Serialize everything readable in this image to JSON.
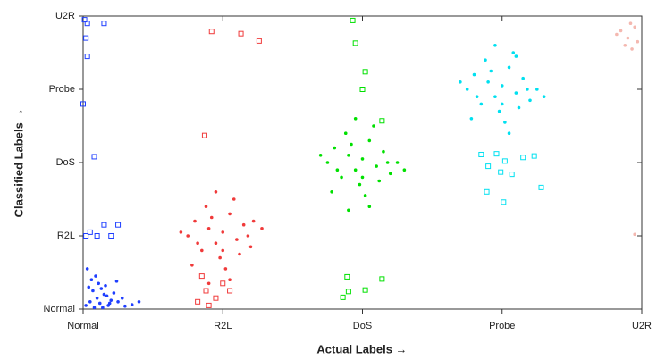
{
  "chart_data": {
    "type": "scatter",
    "x_label": "Actual Labels →",
    "y_label": "Classified Labels →",
    "xlim": [
      0,
      4
    ],
    "ylim": [
      0,
      4
    ],
    "xticks": [
      {
        "value": 0,
        "label": "Normal"
      },
      {
        "value": 1,
        "label": "R2L"
      },
      {
        "value": 2,
        "label": "DoS"
      },
      {
        "value": 3,
        "label": "Probe"
      },
      {
        "value": 4,
        "label": "U2R"
      }
    ],
    "yticks": [
      {
        "value": 0,
        "label": "Normal"
      },
      {
        "value": 1,
        "label": "R2L"
      },
      {
        "value": 2,
        "label": "DoS"
      },
      {
        "value": 3,
        "label": "Probe"
      },
      {
        "value": 4,
        "label": "U2R"
      }
    ],
    "series": [
      {
        "color": "#1f3fff",
        "marker": "dot",
        "x": [
          0.02,
          0.05,
          0.08,
          0.1,
          0.12,
          0.15,
          0.18,
          0.2,
          0.25,
          0.3,
          0.04,
          0.07,
          0.11,
          0.14,
          0.17,
          0.22,
          0.28,
          0.35,
          0.06,
          0.09,
          0.13,
          0.19,
          0.03,
          0.16,
          0.4,
          0.24
        ],
        "y": [
          0.05,
          0.1,
          0.02,
          0.15,
          0.08,
          0.2,
          0.05,
          0.12,
          0.1,
          0.04,
          0.3,
          0.25,
          0.35,
          0.02,
          0.18,
          0.22,
          0.15,
          0.06,
          0.4,
          0.45,
          0.28,
          0.08,
          0.55,
          0.32,
          0.1,
          0.38
        ]
      },
      {
        "color": "#1f3fff",
        "marker": "square",
        "x": [
          0.01,
          0.03,
          0.02,
          0.15,
          0.03,
          0.0,
          0.08,
          0.1,
          0.15,
          0.2,
          0.25,
          0.02,
          0.05
        ],
        "y": [
          3.95,
          3.9,
          3.7,
          3.9,
          3.45,
          2.8,
          2.08,
          1.0,
          1.15,
          1.0,
          1.15,
          1.0,
          1.05
        ]
      },
      {
        "color": "#f03a3a",
        "marker": "dot",
        "x": [
          0.75,
          0.8,
          0.85,
          0.9,
          0.95,
          1.0,
          1.05,
          1.1,
          1.15,
          1.2,
          0.78,
          0.88,
          0.98,
          1.08,
          1.18,
          0.82,
          0.92,
          1.02,
          1.12,
          1.22,
          0.7,
          1.28,
          0.95,
          1.05,
          1.0,
          0.9
        ],
        "y": [
          1.0,
          1.2,
          0.8,
          1.1,
          0.9,
          1.05,
          1.3,
          0.95,
          1.15,
          0.85,
          0.6,
          1.4,
          0.7,
          1.5,
          1.0,
          0.9,
          1.25,
          0.55,
          0.75,
          1.2,
          1.05,
          1.1,
          1.6,
          0.4,
          0.8,
          0.35
        ]
      },
      {
        "color": "#f03a3a",
        "marker": "square",
        "x": [
          0.92,
          1.13,
          1.26,
          0.87,
          0.85,
          0.88,
          0.95,
          1.05,
          0.82,
          0.9,
          1.0
        ],
        "y": [
          3.79,
          3.76,
          3.66,
          2.37,
          0.45,
          0.25,
          0.15,
          0.25,
          0.1,
          0.05,
          0.35
        ]
      },
      {
        "color": "#00e000",
        "marker": "dot",
        "x": [
          1.75,
          1.8,
          1.85,
          1.9,
          1.95,
          2.0,
          2.05,
          2.1,
          2.15,
          2.2,
          2.25,
          1.78,
          1.88,
          1.98,
          2.08,
          2.18,
          1.82,
          1.92,
          2.02,
          2.12,
          1.7,
          2.3,
          1.95,
          2.05,
          2.0,
          1.9
        ],
        "y": [
          2.0,
          2.2,
          1.8,
          2.1,
          1.9,
          2.05,
          2.3,
          1.95,
          2.15,
          1.85,
          2.0,
          1.6,
          2.4,
          1.7,
          2.5,
          2.0,
          1.9,
          2.25,
          1.55,
          1.75,
          2.1,
          1.9,
          2.6,
          1.4,
          1.8,
          1.35
        ]
      },
      {
        "color": "#00e000",
        "marker": "square",
        "x": [
          1.93,
          1.95,
          2.02,
          2.0,
          2.14,
          1.89,
          1.9,
          1.86,
          2.02,
          2.14
        ],
        "y": [
          3.94,
          3.63,
          3.24,
          3.0,
          2.57,
          0.44,
          0.24,
          0.16,
          0.26,
          0.41
        ]
      },
      {
        "color": "#00e0f0",
        "marker": "dot",
        "x": [
          2.75,
          2.8,
          2.85,
          2.9,
          2.95,
          3.0,
          3.05,
          3.1,
          3.15,
          3.2,
          3.25,
          2.78,
          2.88,
          2.98,
          3.08,
          3.18,
          2.82,
          2.92,
          3.02,
          3.12,
          2.7,
          3.3,
          2.95,
          3.05,
          3.0,
          3.1
        ],
        "y": [
          3.0,
          3.2,
          2.8,
          3.1,
          2.9,
          3.05,
          3.3,
          2.95,
          3.15,
          2.85,
          3.0,
          2.6,
          3.4,
          2.7,
          3.5,
          3.0,
          2.9,
          3.25,
          2.55,
          2.75,
          3.1,
          2.9,
          3.6,
          2.4,
          2.8,
          3.45
        ]
      },
      {
        "color": "#00e0f0",
        "marker": "square",
        "x": [
          2.85,
          2.96,
          3.02,
          3.15,
          3.23,
          2.9,
          2.99,
          3.07,
          2.89,
          3.28,
          3.01
        ],
        "y": [
          2.11,
          2.12,
          2.02,
          2.07,
          2.09,
          1.95,
          1.87,
          1.84,
          1.6,
          1.66,
          1.46
        ]
      },
      {
        "color": "#f4b8b0",
        "marker": "dot",
        "x": [
          3.85,
          3.9,
          3.95,
          3.88,
          3.92,
          3.97,
          3.82,
          3.93,
          3.95
        ],
        "y": [
          3.8,
          3.7,
          3.85,
          3.6,
          3.9,
          3.65,
          3.75,
          3.55,
          1.02
        ]
      }
    ]
  }
}
